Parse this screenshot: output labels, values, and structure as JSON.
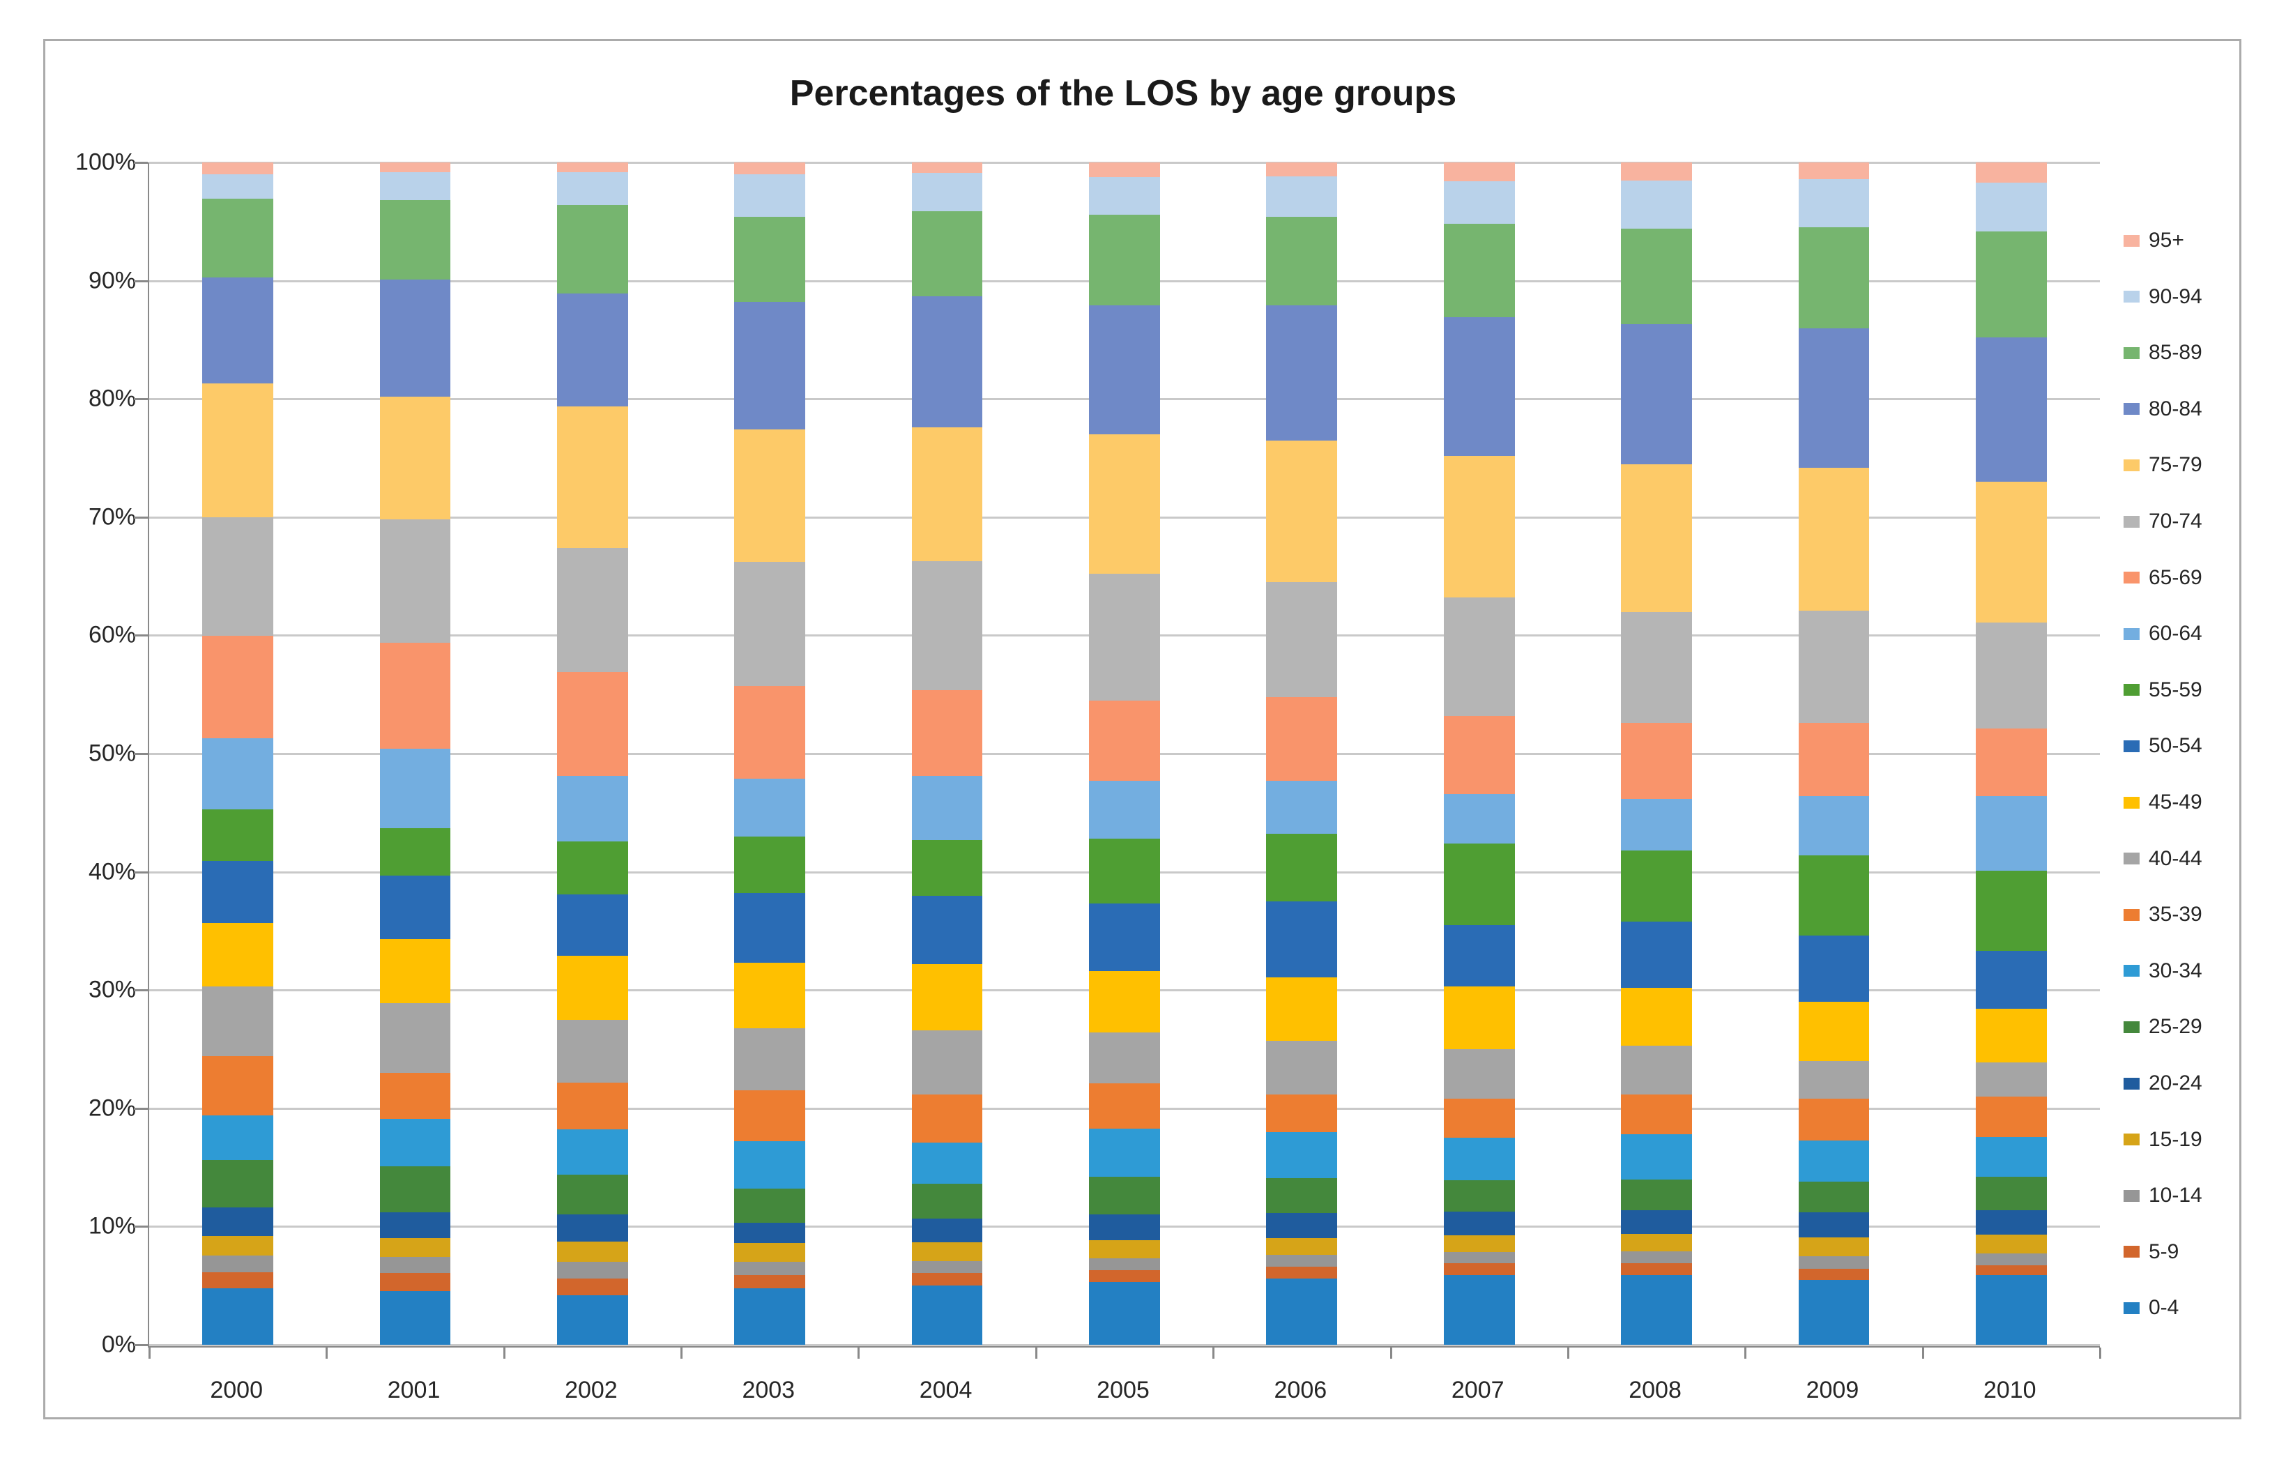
{
  "title": "Percentages of the LOS by age groups",
  "chart_data": {
    "type": "bar",
    "stacked": true,
    "percent_stacked": true,
    "title": "Percentages of the LOS by age groups",
    "xlabel": "",
    "ylabel": "",
    "ylim": [
      0,
      100
    ],
    "grid": true,
    "legend_position": "right",
    "yticks": [
      "0%",
      "10%",
      "20%",
      "30%",
      "40%",
      "50%",
      "60%",
      "70%",
      "80%",
      "90%",
      "100%"
    ],
    "categories": [
      "2000",
      "2001",
      "2002",
      "2003",
      "2004",
      "2005",
      "2006",
      "2007",
      "2008",
      "2009",
      "2010"
    ],
    "series": [
      {
        "name": "0-4",
        "color": "#2380c3",
        "values": [
          4.8,
          4.55,
          4.2,
          4.8,
          5.0,
          5.3,
          5.6,
          5.9,
          5.9,
          5.5,
          5.9
        ]
      },
      {
        "name": "5-9",
        "color": "#d2662c",
        "values": [
          1.35,
          1.5,
          1.4,
          1.1,
          1.05,
          1.0,
          1.0,
          1.0,
          1.0,
          0.9,
          0.85
        ]
      },
      {
        "name": "10-14",
        "color": "#969696",
        "values": [
          1.4,
          1.4,
          1.4,
          1.1,
          1.05,
          1.0,
          1.0,
          0.95,
          1.0,
          1.1,
          1.0
        ]
      },
      {
        "name": "15-19",
        "color": "#d6a418",
        "values": [
          1.65,
          1.6,
          1.7,
          1.6,
          1.55,
          1.55,
          1.45,
          1.4,
          1.5,
          1.6,
          1.55
        ]
      },
      {
        "name": "20-24",
        "color": "#1f5c9e",
        "values": [
          2.4,
          2.15,
          2.3,
          1.7,
          2.0,
          2.2,
          2.1,
          2.0,
          2.0,
          2.1,
          2.1
        ]
      },
      {
        "name": "25-29",
        "color": "#44883c",
        "values": [
          4.0,
          3.9,
          3.4,
          2.9,
          3.0,
          3.15,
          2.95,
          2.65,
          2.6,
          2.6,
          2.8
        ]
      },
      {
        "name": "30-34",
        "color": "#2e9bd5",
        "values": [
          3.8,
          4.0,
          3.8,
          4.0,
          3.45,
          4.1,
          3.9,
          3.6,
          3.8,
          3.5,
          3.4
        ]
      },
      {
        "name": "35-39",
        "color": "#ed7d31",
        "values": [
          5.0,
          3.9,
          4.0,
          4.3,
          4.1,
          3.8,
          3.2,
          3.3,
          3.4,
          3.5,
          3.4
        ]
      },
      {
        "name": "40-44",
        "color": "#a5a5a5",
        "values": [
          5.9,
          5.9,
          5.3,
          5.3,
          5.4,
          4.3,
          4.5,
          4.2,
          4.1,
          3.2,
          2.9
        ]
      },
      {
        "name": "45-49",
        "color": "#ffc000",
        "values": [
          5.4,
          5.4,
          5.4,
          5.5,
          5.6,
          5.2,
          5.4,
          5.3,
          4.9,
          5.0,
          4.5
        ]
      },
      {
        "name": "50-54",
        "color": "#2a6cb5",
        "values": [
          5.2,
          5.4,
          5.2,
          5.9,
          5.8,
          5.7,
          6.4,
          5.2,
          5.6,
          5.6,
          4.9
        ]
      },
      {
        "name": "55-59",
        "color": "#4f9e33",
        "values": [
          4.4,
          4.0,
          4.5,
          4.8,
          4.7,
          5.5,
          5.7,
          6.9,
          6.0,
          6.8,
          6.8
        ]
      },
      {
        "name": "60-64",
        "color": "#73aee0",
        "values": [
          6.0,
          6.7,
          5.5,
          4.9,
          5.4,
          4.9,
          4.5,
          4.2,
          4.4,
          5.0,
          6.3
        ]
      },
      {
        "name": "65-69",
        "color": "#f9946b",
        "values": [
          8.7,
          9.0,
          8.8,
          7.8,
          7.3,
          6.8,
          7.1,
          6.6,
          6.4,
          6.2,
          5.7
        ]
      },
      {
        "name": "70-74",
        "color": "#b5b5b5",
        "values": [
          10.0,
          10.4,
          10.5,
          10.5,
          10.9,
          10.7,
          9.7,
          10.0,
          9.4,
          9.5,
          9.0
        ]
      },
      {
        "name": "75-79",
        "color": "#fdca68",
        "values": [
          11.3,
          10.4,
          12.0,
          11.2,
          11.3,
          11.8,
          12.0,
          12.0,
          12.5,
          12.1,
          11.9
        ]
      },
      {
        "name": "80-84",
        "color": "#6f89c7",
        "values": [
          9.0,
          9.9,
          9.5,
          10.8,
          11.1,
          10.9,
          11.4,
          11.7,
          11.8,
          11.8,
          12.2
        ]
      },
      {
        "name": "85-89",
        "color": "#76b56f",
        "values": [
          6.65,
          6.7,
          7.5,
          7.2,
          7.2,
          7.7,
          7.5,
          7.9,
          8.1,
          8.5,
          9.0
        ]
      },
      {
        "name": "90-94",
        "color": "#b9d2ea",
        "values": [
          2.05,
          2.4,
          2.8,
          3.6,
          3.2,
          3.2,
          3.4,
          3.6,
          4.1,
          4.1,
          4.1
        ]
      },
      {
        "name": "95+",
        "color": "#f8b39f",
        "values": [
          1.0,
          0.8,
          0.8,
          1.0,
          0.9,
          1.2,
          1.2,
          1.6,
          1.5,
          1.4,
          1.7
        ]
      }
    ],
    "legend_labels_top_to_bottom": [
      "95+",
      "90-94",
      "85-89",
      "80-84",
      "75-79",
      "70-74",
      "65-69",
      "60-64",
      "55-59",
      "50-54",
      "45-49",
      "40-44",
      "35-39",
      "30-34",
      "25-29",
      "20-24",
      "15-19",
      "10-14",
      "5-9",
      "0-4"
    ]
  }
}
